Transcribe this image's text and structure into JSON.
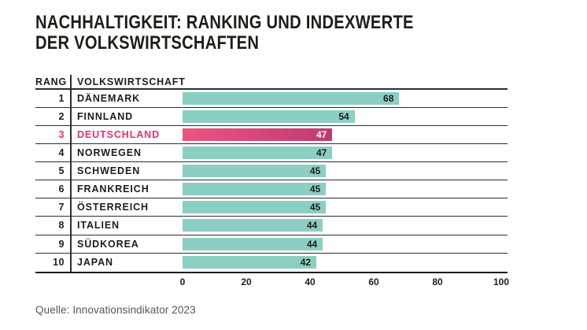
{
  "chart_data": {
    "type": "bar",
    "orientation": "horizontal",
    "title_line1": "NACHHALTIGKEIT: RANKING UND INDEXWERTE",
    "title_line2": "DER VOLKSWIRTSCHAFTEN",
    "header": {
      "rank": "RANG",
      "economy": "VOLKSWIRTSCHAFT"
    },
    "rows": [
      {
        "rank": "1",
        "economy": "DÄNEMARK",
        "value": 68,
        "highlight": false
      },
      {
        "rank": "2",
        "economy": "FINNLAND",
        "value": 54,
        "highlight": false
      },
      {
        "rank": "3",
        "economy": "DEUTSCHLAND",
        "value": 47,
        "highlight": true
      },
      {
        "rank": "4",
        "economy": "NORWEGEN",
        "value": 47,
        "highlight": false
      },
      {
        "rank": "5",
        "economy": "SCHWEDEN",
        "value": 45,
        "highlight": false
      },
      {
        "rank": "6",
        "economy": "FRANKREICH",
        "value": 45,
        "highlight": false
      },
      {
        "rank": "7",
        "economy": "ÖSTERREICH",
        "value": 45,
        "highlight": false
      },
      {
        "rank": "8",
        "economy": "ITALIEN",
        "value": 44,
        "highlight": false
      },
      {
        "rank": "9",
        "economy": "SÜDKOREA",
        "value": 44,
        "highlight": false
      },
      {
        "rank": "10",
        "economy": "JAPAN",
        "value": 42,
        "highlight": false
      }
    ],
    "x_ticks": [
      0,
      20,
      40,
      60,
      80,
      100
    ],
    "xlim": [
      0,
      100
    ],
    "grid": false,
    "legend": false,
    "source": "Quelle: Innovationsindikator 2023",
    "colors": {
      "bar": "#8BCFC3",
      "highlight_gradient_start": "#EB5581",
      "highlight_gradient_end": "#BE3A74",
      "highlight_label": "#E8326E",
      "value_on_bar": "#1D1D1B",
      "value_on_highlight": "#FFFFFF",
      "text": "#1D1D1B",
      "line": "#2E2E2E",
      "source_text": "#575756"
    }
  }
}
